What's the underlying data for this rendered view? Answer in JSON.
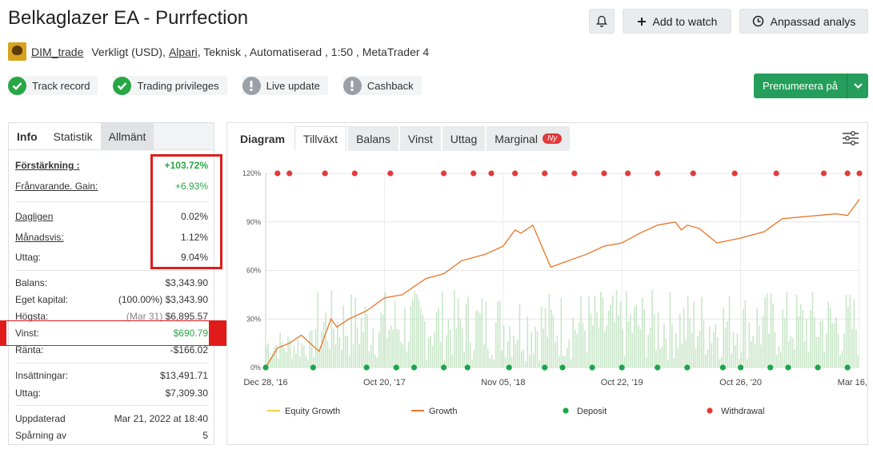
{
  "header": {
    "title": "Belkaglazer EA - Purrfection",
    "add_to_watch": "Add to watch",
    "custom_analysis": "Anpassad analys"
  },
  "meta": {
    "user": "DIM_trade",
    "account_type": "Verkligt (USD),",
    "broker": "Alpari",
    "details": ", Teknisk , Automatiserad , 1:50 , MetaTrader 4"
  },
  "badges": [
    {
      "label": "Track record",
      "status": "ok"
    },
    {
      "label": "Trading privileges",
      "status": "ok"
    },
    {
      "label": "Live update",
      "status": "warn"
    },
    {
      "label": "Cashback",
      "status": "warn"
    }
  ],
  "subscribe": {
    "label": "Prenumerera på"
  },
  "left_tabs": [
    "Info",
    "Statistik",
    "Allmänt"
  ],
  "stats": {
    "gain_label": "Förstärkning :",
    "gain_value": "+103.72%",
    "abs_gain_label": "Frånvarande. Gain:",
    "abs_gain_value": "+6.93%",
    "daily_label": "Dagligen",
    "daily_value": "0.02%",
    "monthly_label": "Månadsvis:",
    "monthly_value": "1.12%",
    "drawdown_label": "Uttag:",
    "drawdown_value": "9.04%",
    "balance_label": "Balans:",
    "balance_value": "$3,343.90",
    "equity_label": "Eget kapital:",
    "equity_pct": "(100.00%)",
    "equity_value": "$3,343.90",
    "highest_label": "Högsta:",
    "highest_date": "(Mar 31)",
    "highest_value": "$6,895.57",
    "profit_label": "Vinst:",
    "profit_value": "$690.79",
    "interest_label": "Ränta:",
    "interest_value": "-$166.02",
    "deposits_label": "Insättningar:",
    "deposits_value": "$13,491.71",
    "withdrawals_label": "Uttag:",
    "withdrawals_value": "$7,309.30",
    "updated_label": "Uppdaterad",
    "updated_value": "Mar 21, 2022 at 18:40",
    "tracking_label": "Spårning av",
    "tracking_value": "5"
  },
  "right_tabs": [
    {
      "label": "Diagram"
    },
    {
      "label": "Tillväxt"
    },
    {
      "label": "Balans"
    },
    {
      "label": "Vinst"
    },
    {
      "label": "Uttag"
    },
    {
      "label": "Marginal",
      "badge": "Ny"
    }
  ],
  "chart_data": {
    "type": "line",
    "title": "",
    "y_ticks": [
      "0%",
      "30%",
      "60%",
      "90%",
      "120%"
    ],
    "ylim": [
      0,
      120
    ],
    "x_ticks": [
      "Dec 28, '16",
      "Oct 20, '17",
      "Nov 05, '18",
      "Oct 22, '19",
      "Oct 26, '20",
      "Mar 16, '22"
    ],
    "legend": [
      "Equity Growth",
      "Growth",
      "Deposit",
      "Withdrawal"
    ],
    "legend_position": "bottom",
    "colors": {
      "equity": "#f2cf4a",
      "growth": "#e8762e",
      "deposit": "#1aa64a",
      "withdrawal": "#e23b3b",
      "bars": "#bfe3c0"
    },
    "series": [
      {
        "name": "Growth",
        "x": [
          0,
          0.02,
          0.04,
          0.06,
          0.09,
          0.11,
          0.12,
          0.14,
          0.17,
          0.2,
          0.23,
          0.27,
          0.3,
          0.33,
          0.37,
          0.4,
          0.42,
          0.43,
          0.45,
          0.48,
          0.51,
          0.54,
          0.57,
          0.6,
          0.63,
          0.66,
          0.69,
          0.7,
          0.71,
          0.73,
          0.76,
          0.8,
          0.84,
          0.87,
          0.9,
          0.93,
          0.96,
          0.98,
          1.0
        ],
        "y": [
          0,
          12,
          15,
          20,
          10,
          30,
          25,
          30,
          35,
          43,
          45,
          55,
          58,
          66,
          70,
          75,
          85,
          83,
          88,
          62,
          66,
          70,
          75,
          77,
          83,
          88,
          90,
          85,
          88,
          86,
          77,
          80,
          84,
          92,
          93,
          94,
          95,
          94,
          104
        ]
      },
      {
        "name": "Deposit",
        "x": [
          0.0,
          0.08,
          0.17,
          0.22,
          0.25,
          0.3,
          0.34,
          0.41,
          0.47,
          0.5,
          0.55,
          0.6,
          0.66,
          0.71,
          0.77,
          0.8,
          0.85,
          0.88,
          0.93,
          0.98
        ],
        "y": [
          0,
          0,
          0,
          0,
          0,
          0,
          0,
          0,
          0,
          0,
          0,
          0,
          0,
          0,
          0,
          0,
          0,
          0,
          0,
          0
        ]
      },
      {
        "name": "Withdrawal",
        "x": [
          0.02,
          0.04,
          0.1,
          0.15,
          0.21,
          0.3,
          0.35,
          0.38,
          0.42,
          0.47,
          0.52,
          0.57,
          0.61,
          0.66,
          0.72,
          0.79,
          0.86,
          0.94,
          0.98,
          1.0
        ],
        "y": [
          120,
          120,
          120,
          120,
          120,
          120,
          120,
          120,
          120,
          120,
          120,
          120,
          120,
          120,
          120,
          120,
          120,
          120,
          120,
          120
        ]
      }
    ]
  }
}
